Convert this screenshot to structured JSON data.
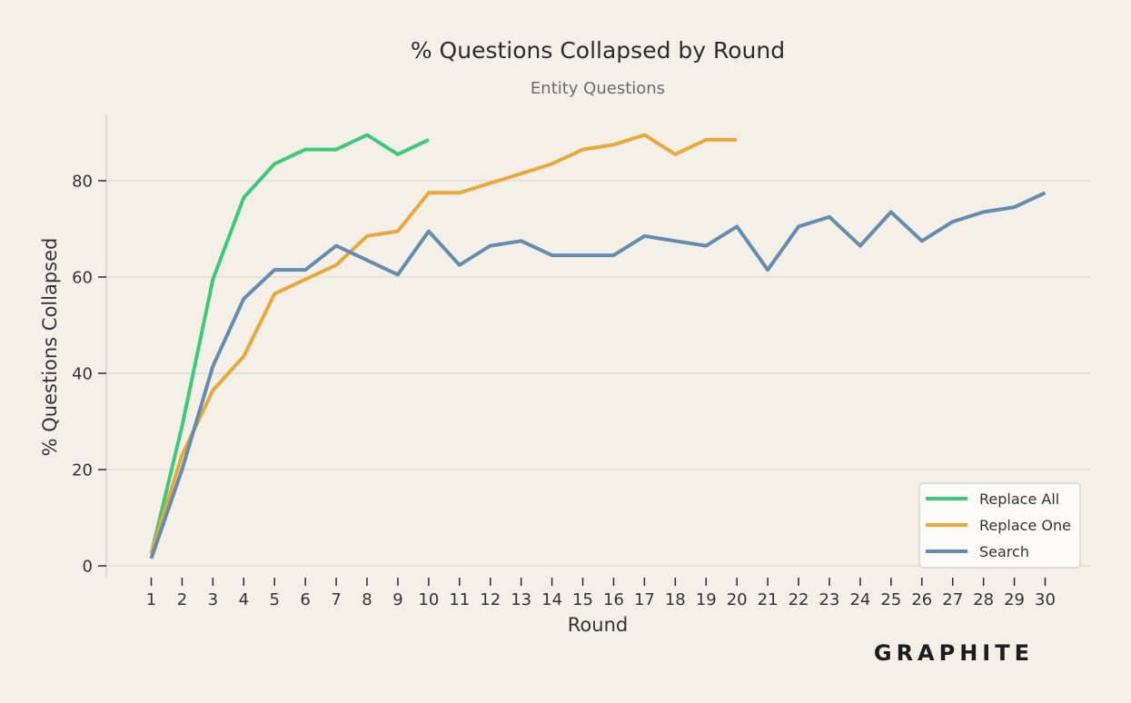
{
  "chart_data": {
    "type": "line",
    "title": "% Questions Collapsed by Round",
    "subtitle": "Entity Questions",
    "xlabel": "Round",
    "ylabel": "% Questions Collapsed",
    "x_ticks": [
      1,
      2,
      3,
      4,
      5,
      6,
      7,
      8,
      9,
      10,
      11,
      12,
      13,
      14,
      15,
      16,
      17,
      18,
      19,
      20,
      21,
      22,
      23,
      24,
      25,
      26,
      27,
      28,
      29,
      30
    ],
    "y_ticks": [
      0,
      20,
      40,
      60,
      80
    ],
    "xlim": [
      -0.5,
      30.5
    ],
    "ylim": [
      -2.5,
      93
    ],
    "grid": "horizontal",
    "legend_position": "bottom-right",
    "series": [
      {
        "name": "Replace All",
        "color": "#3ec97a",
        "x": [
          1,
          2,
          3,
          4,
          5,
          6,
          7,
          8,
          9,
          10
        ],
        "values": [
          2.5,
          29,
          59.5,
          76.5,
          83.5,
          86.5,
          86.5,
          89.5,
          85.5,
          88.5
        ]
      },
      {
        "name": "Replace One",
        "color": "#e8a83a",
        "x": [
          1,
          2,
          3,
          4,
          5,
          6,
          7,
          8,
          9,
          10,
          11,
          12,
          13,
          14,
          15,
          16,
          17,
          18,
          19,
          20
        ],
        "values": [
          2.5,
          23,
          36.5,
          43.5,
          56.5,
          59.5,
          62.5,
          68.5,
          69.5,
          77.5,
          77.5,
          79.5,
          81.5,
          83.5,
          86.5,
          87.5,
          89.5,
          85.5,
          88.5,
          88.5
        ]
      },
      {
        "name": "Search",
        "color": "#648caf",
        "x": [
          1,
          2,
          3,
          4,
          5,
          6,
          7,
          8,
          9,
          10,
          11,
          12,
          13,
          14,
          15,
          16,
          17,
          18,
          19,
          20,
          21,
          22,
          23,
          24,
          25,
          26,
          27,
          28,
          29,
          30
        ],
        "values": [
          1.5,
          20,
          41.5,
          55.5,
          61.5,
          61.5,
          66.5,
          63.5,
          60.5,
          69.5,
          62.5,
          66.5,
          67.5,
          64.5,
          64.5,
          64.5,
          68.5,
          67.5,
          66.5,
          70.5,
          61.5,
          70.5,
          72.5,
          66.5,
          73.5,
          67.5,
          71.5,
          73.5,
          74.5,
          77.5
        ]
      }
    ]
  },
  "branding": {
    "logo_text": "GRAPHITE"
  }
}
